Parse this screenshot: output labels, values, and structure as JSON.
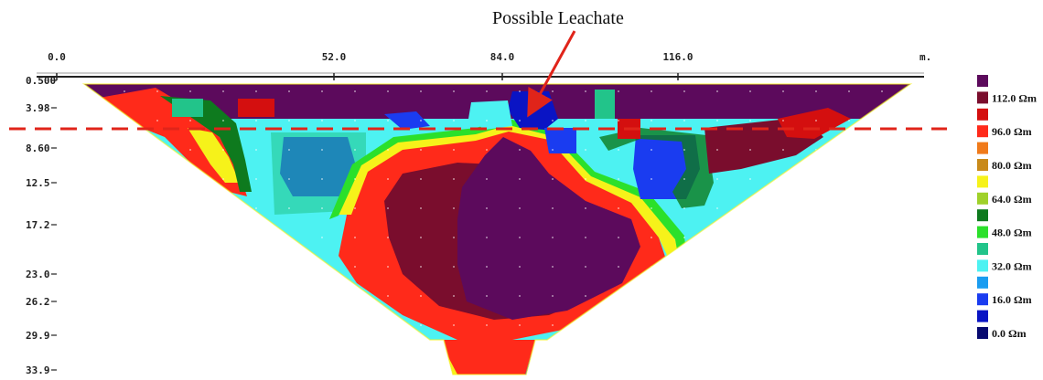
{
  "chart_data": {
    "type": "heatmap",
    "title": "",
    "annotation": "Possible Leachate",
    "x_axis": {
      "ticks": [
        {
          "label": "0.0",
          "value": 0
        },
        {
          "label": "52.0",
          "value": 52
        },
        {
          "label": "84.0",
          "value": 84
        },
        {
          "label": "116.0",
          "value": 116
        }
      ],
      "unit": "m.",
      "range": [
        0,
        181
      ]
    },
    "y_axis": {
      "ticks": [
        {
          "label": "0.500",
          "value": 0.5
        },
        {
          "label": "3.98",
          "value": 3.98
        },
        {
          "label": "8.60",
          "value": 8.6
        },
        {
          "label": "12.5",
          "value": 12.5
        },
        {
          "label": "17.2",
          "value": 17.2
        },
        {
          "label": "23.0",
          "value": 23.0
        },
        {
          "label": "26.2",
          "value": 26.2
        },
        {
          "label": "29.9",
          "value": 29.9
        },
        {
          "label": "33.9",
          "value": 33.9
        }
      ],
      "inverted": true
    },
    "legend": {
      "placement": "right",
      "entries": [
        {
          "label": "",
          "color": "#5c0a5c"
        },
        {
          "label": "112.0 Ωm",
          "color": "#7a0d2d"
        },
        {
          "label": "",
          "color": "#d40f0f"
        },
        {
          "label": "96.0 Ωm",
          "color": "#ff2a1a"
        },
        {
          "label": "",
          "color": "#f07a1a"
        },
        {
          "label": "80.0 Ωm",
          "color": "#c98a1a"
        },
        {
          "label": "",
          "color": "#f6f21a"
        },
        {
          "label": "64.0 Ωm",
          "color": "#9fd12a"
        },
        {
          "label": "",
          "color": "#0e7a1e"
        },
        {
          "label": "48.0 Ωm",
          "color": "#2be02b"
        },
        {
          "label": "",
          "color": "#22c48a"
        },
        {
          "label": "32.0 Ωm",
          "color": "#4df2f2"
        },
        {
          "label": "",
          "color": "#1a9cf0"
        },
        {
          "label": "16.0 Ωm",
          "color": "#1a3cf0"
        },
        {
          "label": "",
          "color": "#0a14c4"
        },
        {
          "label": "0.0 Ωm",
          "color": "#070a70"
        }
      ]
    },
    "reference_line": {
      "style": "dashed",
      "color": "#e0241a",
      "depth": 5.8
    },
    "regions": [
      {
        "name": "high-resistivity-core",
        "color": "#5c0a5c",
        "resistivity": ">112"
      },
      {
        "name": "low-resistivity-lenses",
        "color": "#1a3cf0",
        "resistivity": "<16"
      },
      {
        "name": "possible-leachate-zone",
        "color": "#0a14c4",
        "resistivity": "<16"
      }
    ]
  }
}
